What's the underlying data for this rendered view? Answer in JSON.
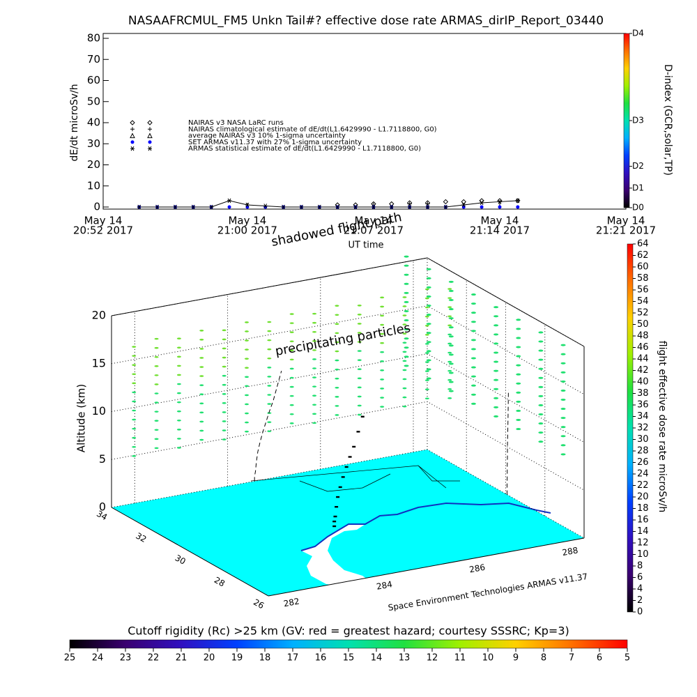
{
  "chart_data": [
    {
      "type": "scatter",
      "title": "NASAAFRCMUL_FM5 Unkn Tail#? effective dose rate ARMAS_dirIP_Report_03440",
      "xlabel": "UT time",
      "ylabel": "dE/dt microSv/h",
      "xlim": [
        "2017-05-14T20:52",
        "2017-05-14T21:21"
      ],
      "xticks": [
        {
          "value": "2017-05-14T20:52",
          "label": [
            "May 14",
            "20:52 2017"
          ]
        },
        {
          "value": "2017-05-14T21:00",
          "label": [
            "May 14",
            "21:00 2017"
          ]
        },
        {
          "value": "2017-05-14T21:07",
          "label": [
            "May 14",
            "21:07 2017"
          ]
        },
        {
          "value": "2017-05-14T21:14",
          "label": [
            "May 14",
            "21:14 2017"
          ]
        },
        {
          "value": "2017-05-14T21:21",
          "label": [
            "May 14",
            "21:21 2017"
          ]
        }
      ],
      "ylim": [
        0,
        80
      ],
      "yticks": [
        0,
        10,
        20,
        30,
        40,
        50,
        60,
        70,
        80
      ],
      "x": [
        "2017-05-14T20:54",
        "2017-05-14T20:55",
        "2017-05-14T20:56",
        "2017-05-14T20:57",
        "2017-05-14T20:58",
        "2017-05-14T20:59",
        "2017-05-14T21:00",
        "2017-05-14T21:01",
        "2017-05-14T21:02",
        "2017-05-14T21:03",
        "2017-05-14T21:04",
        "2017-05-14T21:05",
        "2017-05-14T21:06",
        "2017-05-14T21:07",
        "2017-05-14T21:08",
        "2017-05-14T21:09",
        "2017-05-14T21:10",
        "2017-05-14T21:11",
        "2017-05-14T21:12",
        "2017-05-14T21:13",
        "2017-05-14T21:14",
        "2017-05-14T21:15"
      ],
      "series": [
        {
          "name": "NAIRAS v3 NASA LaRC runs",
          "marker": "diamond",
          "color": "#000000",
          "values": [
            null,
            null,
            null,
            null,
            null,
            null,
            null,
            null,
            null,
            null,
            null,
            1,
            1,
            1.5,
            1.5,
            2,
            2,
            2.5,
            2.5,
            3,
            3,
            3
          ]
        },
        {
          "name": "NAIRAS climatological estimate of dE/dt(L1.6429990 - L1.7118800, G0)",
          "marker": "plus",
          "color": "#000000",
          "values": [
            null,
            null,
            null,
            null,
            null,
            null,
            null,
            null,
            null,
            null,
            null,
            null,
            null,
            null,
            null,
            1.5,
            1.5,
            null,
            null,
            null,
            null,
            null
          ]
        },
        {
          "name": "average NAIRAS v3 10% 1-sigma uncertainty",
          "marker": "triangle",
          "color": "#000000",
          "values": [
            null,
            null,
            null,
            null,
            null,
            null,
            null,
            null,
            null,
            null,
            null,
            null,
            null,
            null,
            null,
            null,
            null,
            null,
            null,
            null,
            null,
            null
          ]
        },
        {
          "name": "SET ARMAS v11.37 with 27% 1-sigma uncertainty",
          "marker": "circle",
          "color": "#0000ff",
          "values": [
            0,
            0,
            0,
            0,
            0,
            0,
            0,
            0,
            0,
            0,
            0,
            0,
            0,
            0,
            0,
            0,
            0,
            0,
            0,
            0,
            0,
            0
          ]
        },
        {
          "name": "ARMAS statistical estimate of dE/dt(L1.6429990 - L1.7118800, G0)",
          "marker": "asterisk",
          "color": "#000000",
          "line": true,
          "values": [
            0,
            0,
            0,
            0,
            0,
            3,
            1,
            0.5,
            0,
            0,
            0,
            0,
            0,
            0,
            0,
            0,
            0,
            0,
            1,
            2,
            2.5,
            3
          ]
        }
      ]
    },
    {
      "type": "scatter3d",
      "zlabel": "Altitude (km)",
      "zlim": [
        0,
        20
      ],
      "zticks": [
        0,
        5,
        10,
        15,
        20
      ],
      "latlim": [
        26,
        34
      ],
      "latticks": [
        26,
        28,
        30,
        32,
        34
      ],
      "lonlim": [
        281.5,
        288.3
      ],
      "lonticks": [
        282,
        284,
        286,
        288
      ],
      "annotations": [
        "shadowed flight path",
        "precipitating particles",
        "Space Environment Technologies ARMAS v11.37"
      ],
      "flight_path": {
        "lat": [
          29.93,
          29.93,
          29.93,
          29.92,
          29.92,
          29.91,
          29.91,
          29.9,
          29.89,
          29.88,
          29.87,
          29.86
        ],
        "lon": [
          284.58,
          284.58,
          284.6,
          284.62,
          284.65,
          284.7,
          284.76,
          284.83,
          284.9,
          284.98,
          285.07,
          285.16
        ],
        "alt": [
          0,
          0.5,
          1,
          2,
          3,
          4,
          5,
          6,
          7,
          8,
          9.5,
          11
        ]
      }
    },
    {
      "type": "colorbar",
      "title": "D-index (GCR,solar,TP)",
      "ylim": [
        0,
        80
      ],
      "yticks": [
        {
          "value": 0,
          "label": "D0"
        },
        {
          "value": 9,
          "label": "D1"
        },
        {
          "value": 19,
          "label": "D2"
        },
        {
          "value": 40,
          "label": "D3"
        },
        {
          "value": 80,
          "label": "D4"
        }
      ]
    },
    {
      "type": "colorbar",
      "title": "flight effective dose rate microSv/h",
      "ylim": [
        0,
        64
      ],
      "yticks": [
        0,
        2,
        4,
        6,
        8,
        10,
        12,
        14,
        16,
        18,
        20,
        22,
        24,
        26,
        28,
        30,
        32,
        34,
        36,
        38,
        40,
        42,
        44,
        46,
        48,
        50,
        52,
        54,
        56,
        58,
        60,
        62,
        64
      ]
    },
    {
      "type": "colorbar",
      "title": "Cutoff rigidity (Rc) >25 km (GV: red = greatest hazard; courtesy SSSRC; Kp=3)",
      "xlim": [
        25,
        5
      ],
      "xticks": [
        25,
        24,
        23,
        22,
        21,
        20,
        19,
        18,
        17,
        16,
        15,
        14,
        13,
        12,
        11,
        10,
        9,
        8,
        7,
        6,
        5
      ]
    }
  ]
}
